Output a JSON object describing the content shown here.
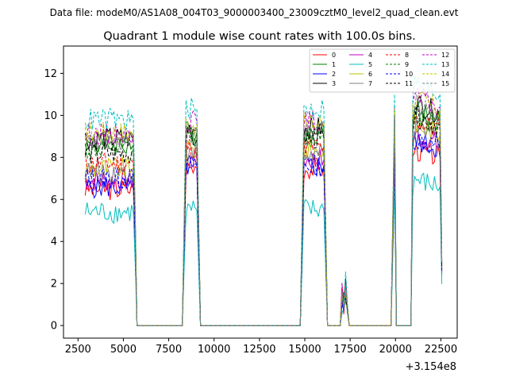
{
  "chart_data": {
    "type": "line",
    "suptitle": "Data file: modeM0/AS1A08_004T03_9000003400_23009cztM0_level2_quad_clean.evt",
    "title": "Quadrant 1 module wise count rates with 100.0s bins.",
    "xlabel": "",
    "ylabel": "",
    "x_offset_label": "+3.154e8",
    "xlim": [
      1700,
      23400
    ],
    "ylim": [
      -0.6,
      13.3
    ],
    "x_ticks": [
      2500,
      5000,
      7500,
      10000,
      12500,
      15000,
      17500,
      20000,
      22500
    ],
    "x_tick_labels": [
      "2500",
      "5000",
      "7500",
      "10000",
      "12500",
      "15000",
      "17500",
      "20000",
      "22500"
    ],
    "y_ticks": [
      0,
      2,
      4,
      6,
      8,
      10,
      12
    ],
    "y_tick_labels": [
      "0",
      "2",
      "4",
      "6",
      "8",
      "10",
      "12"
    ],
    "legend_position": "top-right",
    "x_shape": [
      2900,
      5550,
      5650,
      5750,
      8250,
      8350,
      8450,
      9050,
      9150,
      9250,
      14750,
      14850,
      14950,
      16050,
      16150,
      16250,
      16950,
      17050,
      17150,
      17250,
      17350,
      17450,
      19750,
      19850,
      19950,
      20050,
      20850,
      20950,
      21050,
      22450,
      22550
    ],
    "shape_profile": [
      1,
      1,
      0.55,
      0,
      0,
      0.5,
      1,
      1,
      0.5,
      0,
      0,
      0.5,
      1,
      1,
      0.5,
      0,
      0,
      0.2,
      0.15,
      0.25,
      0.12,
      0,
      0,
      0.5,
      1,
      0,
      0,
      1,
      1.05,
      1,
      0.3
    ],
    "series": [
      {
        "name": "0",
        "color": "#ff0000",
        "dash": "solid",
        "levels": [
          6.5,
          7.5,
          1.2,
          8.0
        ]
      },
      {
        "name": "1",
        "color": "#008000",
        "dash": "solid",
        "levels": [
          8.6,
          9.2,
          1.4,
          9.8
        ]
      },
      {
        "name": "2",
        "color": "#0000ff",
        "dash": "solid",
        "levels": [
          6.6,
          7.6,
          1.2,
          8.4
        ]
      },
      {
        "name": "3",
        "color": "#000000",
        "dash": "solid",
        "levels": [
          8.9,
          9.4,
          1.5,
          10.1
        ]
      },
      {
        "name": "4",
        "color": "#bf00bf",
        "dash": "solid",
        "levels": [
          6.9,
          7.9,
          1.3,
          8.6
        ]
      },
      {
        "name": "5",
        "color": "#00bfbf",
        "dash": "solid",
        "levels": [
          5.4,
          5.5,
          1.0,
          6.6
        ]
      },
      {
        "name": "6",
        "color": "#bfbf00",
        "dash": "solid",
        "levels": [
          7.5,
          8.3,
          1.3,
          9.1
        ]
      },
      {
        "name": "7",
        "color": "#808080",
        "dash": "solid",
        "levels": [
          7.3,
          8.1,
          1.3,
          8.9
        ]
      },
      {
        "name": "8",
        "color": "#ff0000",
        "dash": "dashed",
        "levels": [
          7.7,
          8.5,
          1.4,
          9.3
        ]
      },
      {
        "name": "9",
        "color": "#008000",
        "dash": "dashed",
        "levels": [
          8.4,
          9.0,
          1.5,
          9.6
        ]
      },
      {
        "name": "10",
        "color": "#0000ff",
        "dash": "dashed",
        "levels": [
          7.0,
          7.6,
          1.2,
          8.5
        ]
      },
      {
        "name": "11",
        "color": "#000000",
        "dash": "dashed",
        "levels": [
          8.2,
          8.9,
          1.4,
          9.5
        ]
      },
      {
        "name": "12",
        "color": "#bf00bf",
        "dash": "dashed",
        "levels": [
          9.1,
          9.7,
          1.6,
          10.4
        ]
      },
      {
        "name": "13",
        "color": "#00bfbf",
        "dash": "dashed",
        "levels": [
          9.8,
          10.3,
          1.8,
          11.0
        ]
      },
      {
        "name": "14",
        "color": "#bfbf00",
        "dash": "dashed",
        "levels": [
          9.2,
          9.6,
          1.6,
          10.3
        ]
      },
      {
        "name": "15",
        "color": "#808080",
        "dash": "dashed",
        "levels": [
          8.7,
          9.3,
          1.5,
          10.0
        ]
      }
    ]
  }
}
